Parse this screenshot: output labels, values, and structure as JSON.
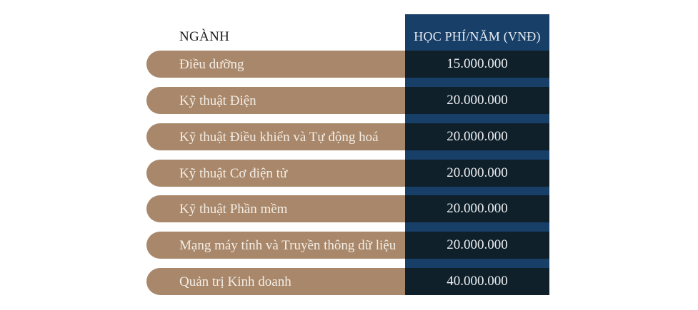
{
  "header": {
    "major": "NGÀNH",
    "fee": "HỌC PHÍ/NĂM (VNĐ)"
  },
  "rows": [
    {
      "major": "Điều dưỡng",
      "fee": "15.000.000"
    },
    {
      "major": "Kỹ thuật Điện",
      "fee": "20.000.000"
    },
    {
      "major": "Kỹ thuật Điều khiển và Tự động hoá",
      "fee": "20.000.000"
    },
    {
      "major": "Kỹ thuật Cơ điện tử",
      "fee": "20.000.000"
    },
    {
      "major": "Kỹ thuật Phần mềm",
      "fee": "20.000.000"
    },
    {
      "major": "Mạng máy tính và Truyền thông dữ liệu",
      "fee": "20.000.000"
    },
    {
      "major": "Quản trị Kinh doanh",
      "fee": "40.000.000"
    }
  ],
  "colors": {
    "pill": "#a8876a",
    "fee_cell": "#0f202b",
    "header_column": "#173f68"
  }
}
